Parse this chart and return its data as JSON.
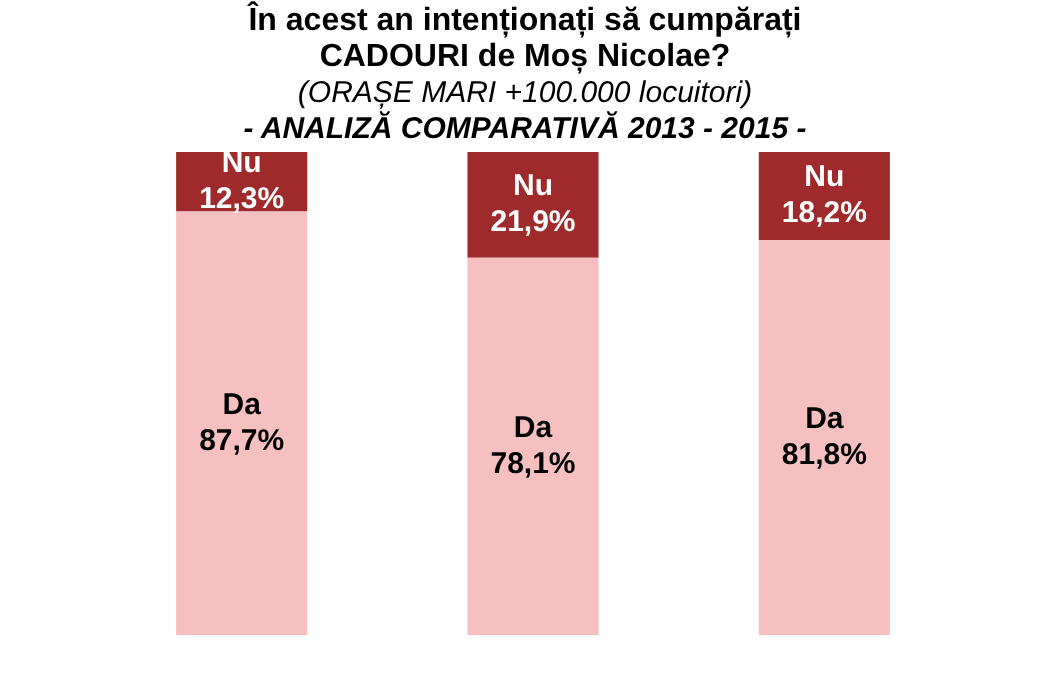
{
  "chart_data": {
    "type": "bar",
    "stacked": true,
    "title": "În acest an intenționați să cumpărați CADOURI de Moș Nicolae?",
    "subtitle": "(ORAȘE MARI +100.000 locuitori)\n- ANALIZĂ COMPARATIVĂ 2013 - 2015 -",
    "categories": [
      null,
      null,
      null
    ],
    "ylim": [
      0,
      100
    ],
    "grid": false,
    "legend": false,
    "series": [
      {
        "name": "Da",
        "color": "#f7c0c0",
        "values": [
          87.7,
          78.1,
          81.8
        ],
        "value_labels": [
          "87,7%",
          "78,1%",
          "81,8%"
        ]
      },
      {
        "name": "Nu",
        "color": "#9e2a2b",
        "values": [
          12.3,
          21.9,
          18.2
        ],
        "value_labels": [
          "12,3%",
          "21,9%",
          "18,2%"
        ]
      }
    ]
  }
}
